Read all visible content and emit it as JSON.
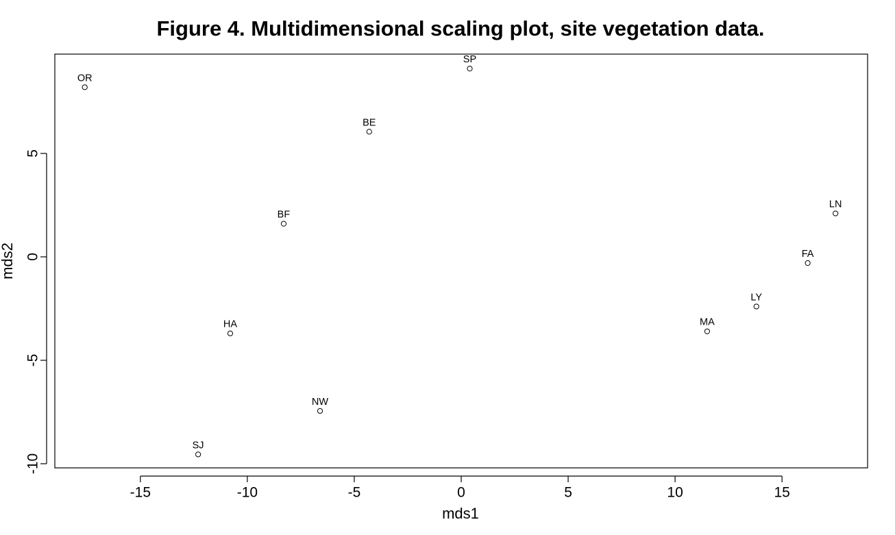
{
  "chart_data": {
    "type": "scatter",
    "title": "Figure 4. Multidimensional scaling plot, site vegetation data.",
    "xlabel": "mds1",
    "ylabel": "mds2",
    "xlim": [
      -19.0,
      19.0
    ],
    "ylim": [
      -10.2,
      9.8
    ],
    "x_ticks": [
      -15,
      -10,
      -5,
      0,
      5,
      10,
      15
    ],
    "y_ticks": [
      -10,
      -5,
      0,
      5
    ],
    "grid": false,
    "legend": "none",
    "marker": "open-circle",
    "colors": {
      "marker_stroke": "#000000",
      "axis": "#000000",
      "text": "#000000"
    },
    "points": [
      {
        "label": "OR",
        "x": -17.6,
        "y": 8.2
      },
      {
        "label": "SP",
        "x": 0.4,
        "y": 9.1
      },
      {
        "label": "BE",
        "x": -4.3,
        "y": 6.05
      },
      {
        "label": "BF",
        "x": -8.3,
        "y": 1.6
      },
      {
        "label": "HA",
        "x": -10.8,
        "y": -3.7
      },
      {
        "label": "NW",
        "x": -6.6,
        "y": -7.45
      },
      {
        "label": "SJ",
        "x": -12.3,
        "y": -9.55
      },
      {
        "label": "LN",
        "x": 17.5,
        "y": 2.1
      },
      {
        "label": "FA",
        "x": 16.2,
        "y": -0.3
      },
      {
        "label": "LY",
        "x": 13.8,
        "y": -2.4
      },
      {
        "label": "MA",
        "x": 11.5,
        "y": -3.6
      }
    ]
  }
}
